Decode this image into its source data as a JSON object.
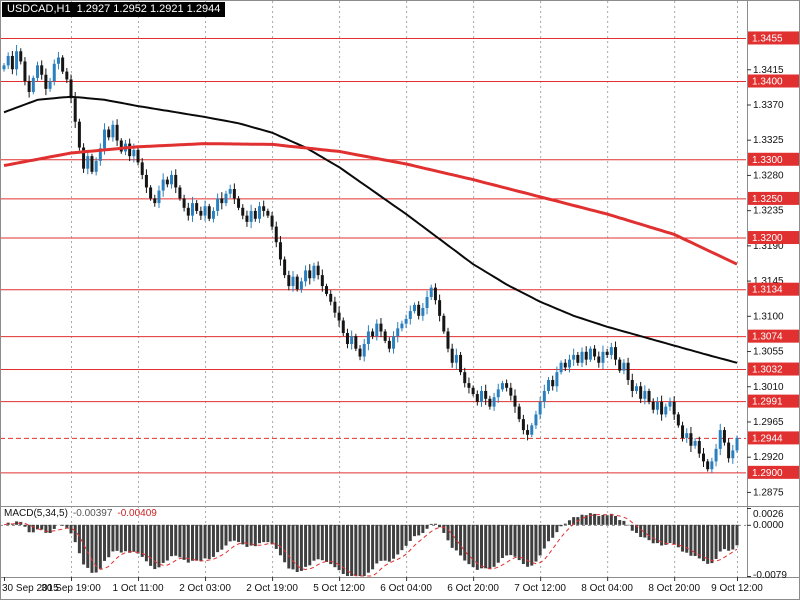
{
  "titlebar": {
    "symbol_tf": "USDCAD,H1",
    "ohlc": "1.2927 1.2952 1.2921 1.2944"
  },
  "colors": {
    "bg": "#ffffff",
    "red": "#e03030",
    "bear": "#151515",
    "bull": "#2a7fbe",
    "macd_bar": "#3f3f3f",
    "grid": "#a8a8a8",
    "border": "#8c8c8c",
    "axis_text": "#111111",
    "tag_text": "#ffffff",
    "title_bg": "#000000",
    "title_fg": "#ffffff"
  },
  "chart_data": {
    "type": "candlestick",
    "symbol": "USDCAD",
    "timeframe": "H1",
    "title": "USDCAD,H1 1.2927 1.2952 1.2921 1.2944",
    "ohlc_display": {
      "open": "1.2927",
      "high": "1.2952",
      "low": "1.2921",
      "close": "1.2944"
    },
    "current_price": 1.2944,
    "y_ticks": [
      "1.3415",
      "1.3370",
      "1.3325",
      "1.3280",
      "1.3235",
      "1.3190",
      "1.3145",
      "1.3100",
      "1.3055",
      "1.3010",
      "1.2965",
      "1.2920",
      "1.2875"
    ],
    "levels": [
      1.3455,
      1.34,
      1.33,
      1.325,
      1.32,
      1.3134,
      1.3074,
      1.3032,
      1.2991,
      1.29
    ],
    "x_labels": [
      {
        "text": "30 Sep 2015",
        "i": 0
      },
      {
        "text": "30 Sep 19:00",
        "i": 16
      },
      {
        "text": "1 Oct 11:00",
        "i": 32
      },
      {
        "text": "2 Oct 03:00",
        "i": 48
      },
      {
        "text": "2 Oct 19:00",
        "i": 64
      },
      {
        "text": "5 Oct 12:00",
        "i": 80
      },
      {
        "text": "6 Oct 04:00",
        "i": 96
      },
      {
        "text": "6 Oct 20:00",
        "i": 112
      },
      {
        "text": "7 Oct 12:00",
        "i": 128
      },
      {
        "text": "8 Oct 04:00",
        "i": 144
      },
      {
        "text": "8 Oct 20:00",
        "i": 160
      },
      {
        "text": "9 Oct 12:00",
        "i": 175
      }
    ],
    "closes": [
      1.342,
      1.3432,
      1.3415,
      1.3438,
      1.3425,
      1.34,
      1.3386,
      1.3404,
      1.342,
      1.3408,
      1.339,
      1.34,
      1.3422,
      1.343,
      1.3412,
      1.3402,
      1.3378,
      1.3348,
      1.3315,
      1.3288,
      1.3304,
      1.3284,
      1.3298,
      1.3314,
      1.3338,
      1.3328,
      1.3344,
      1.3324,
      1.331,
      1.332,
      1.3304,
      1.3312,
      1.3296,
      1.328,
      1.3264,
      1.325,
      1.3244,
      1.326,
      1.3274,
      1.3268,
      1.328,
      1.3264,
      1.325,
      1.3238,
      1.3228,
      1.3244,
      1.3234,
      1.3228,
      1.324,
      1.3224,
      1.3234,
      1.325,
      1.3244,
      1.3256,
      1.3262,
      1.325,
      1.3238,
      1.3228,
      1.322,
      1.3234,
      1.3224,
      1.324,
      1.3234,
      1.3228,
      1.3214,
      1.3194,
      1.3172,
      1.3152,
      1.3138,
      1.315,
      1.3134,
      1.3144,
      1.3158,
      1.3148,
      1.3164,
      1.3152,
      1.3138,
      1.3128,
      1.3118,
      1.3104,
      1.3094,
      1.3078,
      1.3064,
      1.3074,
      1.3058,
      1.3048,
      1.3064,
      1.308,
      1.3074,
      1.309,
      1.308,
      1.3068,
      1.3058,
      1.3074,
      1.3084,
      1.309,
      1.3096,
      1.3106,
      1.3114,
      1.31,
      1.311,
      1.3124,
      1.3136,
      1.312,
      1.31,
      1.308,
      1.3058,
      1.304,
      1.305,
      1.3028,
      1.3014,
      1.3008,
      1.3,
      1.299,
      1.3004,
      1.2994,
      1.2984,
      1.2996,
      1.3006,
      1.3014,
      1.3008,
      1.2998,
      1.2984,
      1.2968,
      1.2954,
      1.2948,
      1.296,
      1.2974,
      1.299,
      1.3004,
      1.3018,
      1.301,
      1.3028,
      1.304,
      1.3034,
      1.3044,
      1.305,
      1.304,
      1.3054,
      1.3044,
      1.3058,
      1.3048,
      1.304,
      1.3054,
      1.305,
      1.306,
      1.3044,
      1.303,
      1.304,
      1.3018,
      1.3004,
      1.301,
      1.2994,
      1.3004,
      1.299,
      1.298,
      1.299,
      1.2974,
      1.2984,
      1.299,
      1.2974,
      1.296,
      1.2944,
      1.295,
      1.2934,
      1.294,
      1.2924,
      1.2914,
      1.2904,
      1.2914,
      1.293,
      1.2954,
      1.2938,
      1.2918,
      1.2928,
      1.2944
    ],
    "ma_red_anchors": [
      [
        0,
        1.3292
      ],
      [
        16,
        1.3308
      ],
      [
        32,
        1.3316
      ],
      [
        48,
        1.332
      ],
      [
        64,
        1.3319
      ],
      [
        80,
        1.331
      ],
      [
        96,
        1.3294
      ],
      [
        112,
        1.3274
      ],
      [
        128,
        1.3252
      ],
      [
        144,
        1.323
      ],
      [
        160,
        1.3204
      ],
      [
        175,
        1.3166
      ]
    ],
    "ma_black_anchors": [
      [
        0,
        1.336
      ],
      [
        8,
        1.3376
      ],
      [
        16,
        1.338
      ],
      [
        24,
        1.3376
      ],
      [
        32,
        1.3368
      ],
      [
        40,
        1.3361
      ],
      [
        48,
        1.3354
      ],
      [
        56,
        1.3346
      ],
      [
        64,
        1.3334
      ],
      [
        72,
        1.3315
      ],
      [
        80,
        1.329
      ],
      [
        88,
        1.326
      ],
      [
        96,
        1.323
      ],
      [
        104,
        1.3198
      ],
      [
        112,
        1.3166
      ],
      [
        120,
        1.314
      ],
      [
        128,
        1.3118
      ],
      [
        136,
        1.31
      ],
      [
        144,
        1.3086
      ],
      [
        152,
        1.3074
      ],
      [
        160,
        1.3062
      ],
      [
        168,
        1.305
      ],
      [
        175,
        1.304
      ]
    ],
    "macd": {
      "label": "MACD(5,34,5)",
      "fast": 5,
      "slow": 34,
      "signal": 5,
      "value_main": "-0.00397",
      "value_signal": "-0.00409",
      "axis_labels": [
        {
          "text": "0.0026",
          "v": 0.0026
        },
        {
          "text": "0.0000",
          "v": 0.0
        },
        {
          "text": "-0.0079",
          "v": -0.0079
        }
      ],
      "range": [
        -0.0079,
        0.0026
      ]
    }
  }
}
